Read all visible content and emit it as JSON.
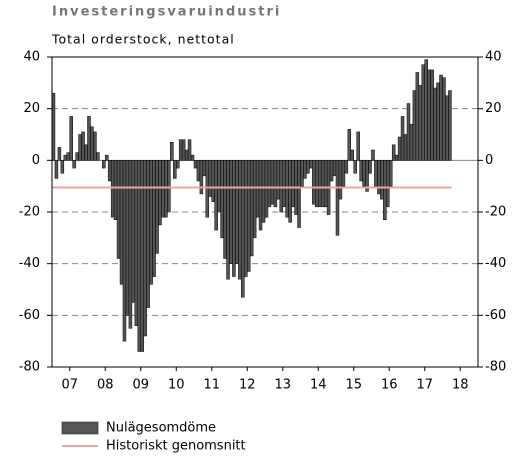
{
  "chart_data": {
    "type": "bar",
    "title": "Investeringsvaruindustri",
    "subtitle": "Total orderstock, nettotal",
    "xlim": [
      2007,
      2019
    ],
    "xticks": [
      {
        "value": 2007.5,
        "label": "07"
      },
      {
        "value": 2008.5,
        "label": "08"
      },
      {
        "value": 2009.5,
        "label": "09"
      },
      {
        "value": 2010.5,
        "label": "10"
      },
      {
        "value": 2011.5,
        "label": "11"
      },
      {
        "value": 2012.5,
        "label": "12"
      },
      {
        "value": 2013.5,
        "label": "13"
      },
      {
        "value": 2014.5,
        "label": "14"
      },
      {
        "value": 2015.5,
        "label": "15"
      },
      {
        "value": 2016.5,
        "label": "16"
      },
      {
        "value": 2017.5,
        "label": "17"
      },
      {
        "value": 2018.5,
        "label": "18"
      }
    ],
    "ylim": [
      -80,
      40
    ],
    "yticks": [
      -80,
      -60,
      -40,
      -20,
      0,
      20,
      40
    ],
    "y2lim": [
      -80,
      40
    ],
    "y2ticks": [
      -80,
      -60,
      -40,
      -20,
      0,
      20,
      40
    ],
    "grid": true,
    "series": [
      {
        "name": "Nulägesomdöme",
        "type": "bar",
        "color": "#555555",
        "x": [
          2007,
          2007.083,
          2007.167,
          2007.25,
          2007.333,
          2007.417,
          2007.5,
          2007.583,
          2007.667,
          2007.75,
          2007.833,
          2007.917,
          2008,
          2008.083,
          2008.167,
          2008.25,
          2008.333,
          2008.417,
          2008.5,
          2008.583,
          2008.667,
          2008.75,
          2008.833,
          2008.917,
          2009,
          2009.083,
          2009.167,
          2009.25,
          2009.333,
          2009.417,
          2009.5,
          2009.583,
          2009.667,
          2009.75,
          2009.833,
          2009.917,
          2010,
          2010.083,
          2010.167,
          2010.25,
          2010.333,
          2010.417,
          2010.5,
          2010.583,
          2010.667,
          2010.75,
          2010.833,
          2010.917,
          2011,
          2011.083,
          2011.167,
          2011.25,
          2011.333,
          2011.417,
          2011.5,
          2011.583,
          2011.667,
          2011.75,
          2011.833,
          2011.917,
          2012,
          2012.083,
          2012.167,
          2012.25,
          2012.333,
          2012.417,
          2012.5,
          2012.583,
          2012.667,
          2012.75,
          2012.833,
          2012.917,
          2013,
          2013.083,
          2013.167,
          2013.25,
          2013.333,
          2013.417,
          2013.5,
          2013.583,
          2013.667,
          2013.75,
          2013.833,
          2013.917,
          2014,
          2014.083,
          2014.167,
          2014.25,
          2014.333,
          2014.417,
          2014.5,
          2014.583,
          2014.667,
          2014.75,
          2014.833,
          2014.917,
          2015,
          2015.083,
          2015.167,
          2015.25,
          2015.333,
          2015.417,
          2015.5,
          2015.583,
          2015.667,
          2015.75,
          2015.833,
          2015.917,
          2016,
          2016.083,
          2016.167,
          2016.25,
          2016.333,
          2016.417,
          2016.5,
          2016.583,
          2016.667,
          2016.75,
          2016.833,
          2016.917,
          2017,
          2017.083,
          2017.167,
          2017.25,
          2017.333,
          2017.417,
          2017.5,
          2017.583,
          2017.667,
          2017.75,
          2017.833,
          2017.917,
          2018,
          2018.083,
          2018.167
        ],
        "values": [
          26,
          -7,
          5,
          -5,
          2,
          3,
          17,
          -3,
          3,
          10,
          11,
          6,
          17,
          13,
          11,
          3,
          0,
          -3,
          2,
          -8,
          -22,
          -23,
          -38,
          -48,
          -70,
          -60,
          -65,
          -55,
          -64,
          -74,
          -74,
          -68,
          -57,
          -48,
          -45,
          -36,
          -25,
          -22,
          -22,
          -20,
          7,
          -7,
          -3,
          8,
          8,
          4,
          8,
          2,
          -3,
          -8,
          -13,
          -6,
          -22,
          -14,
          -16,
          -27,
          -20,
          -30,
          -38,
          -46,
          -40,
          -45,
          -40,
          -46,
          -53,
          -45,
          -43,
          -37,
          -30,
          -22,
          -27,
          -24,
          -22,
          -18,
          -17,
          -18,
          -15,
          -20,
          -18,
          -22,
          -24,
          -18,
          -21,
          -26,
          -10,
          -7,
          -5,
          -3,
          -17,
          -18,
          -18,
          -18,
          -18,
          -21,
          -8,
          -6,
          -29,
          -15,
          -10,
          -5,
          12,
          4,
          -5,
          11,
          -8,
          -10,
          -12,
          -5,
          4,
          -10,
          -13,
          -15,
          -23,
          -18,
          -10,
          6,
          2,
          9,
          17,
          10,
          22,
          14,
          27,
          34,
          29,
          37,
          39,
          35,
          35,
          28,
          30,
          33,
          32,
          25,
          27
        ]
      },
      {
        "name": "Historiskt genomsnitt",
        "type": "line",
        "color": "#f4a0a0",
        "x": [
          2007,
          2018.25
        ],
        "values": [
          -10.5,
          -10.5
        ]
      }
    ]
  }
}
